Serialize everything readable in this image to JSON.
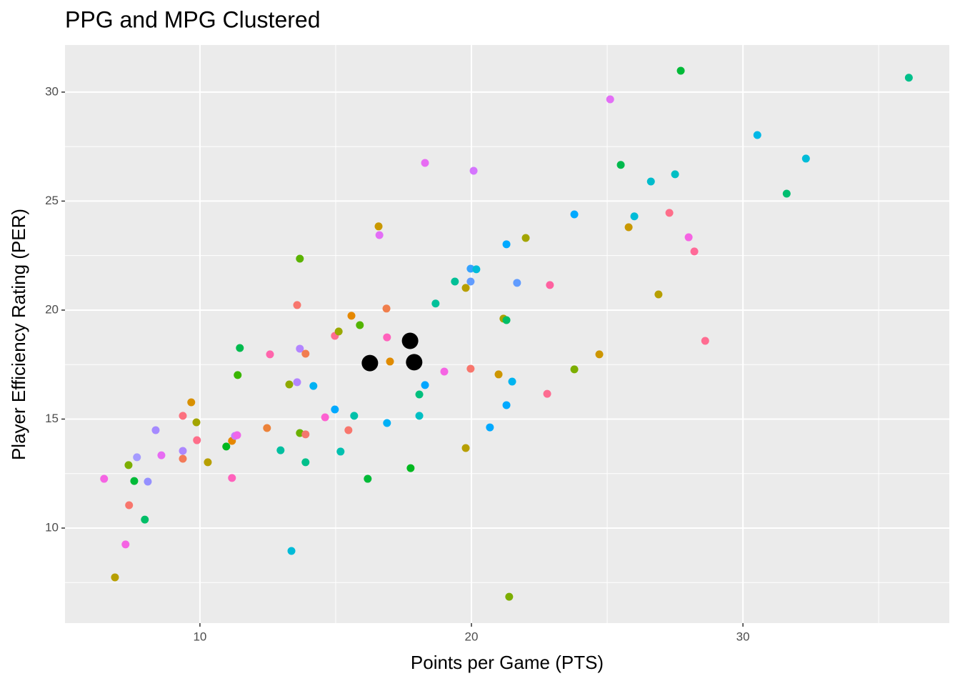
{
  "chart_data": {
    "type": "scatter",
    "title": "PPG and MPG Clustered",
    "x_label": "Points per Game (PTS)",
    "y_label": "Player Efficiency Rating (PER)",
    "xlim": [
      5.03,
      37.6
    ],
    "ylim": [
      5.64,
      32.16
    ],
    "xticks": [
      10,
      20,
      30
    ],
    "yticks": [
      10,
      15,
      20,
      25,
      30
    ],
    "grid": true,
    "background": "#ebebeb",
    "series": [
      {
        "x": [
          6.47,
          7.26,
          6.87,
          7.37,
          7.39,
          7.58,
          7.68,
          7.97,
          8.08,
          8.37,
          8.58,
          9.37,
          9.37,
          9.37,
          9.68,
          9.87,
          9.89,
          10.29,
          10.97,
          11.18,
          11.18,
          11.29,
          11.37,
          11.39,
          11.47,
          12.47,
          12.58,
          12.97,
          13.29,
          13.37,
          13.58,
          13.58,
          13.68,
          13.68,
          13.68,
          13.89,
          13.89,
          13.89,
          14.18,
          14.61,
          14.97,
          14.97,
          15.11,
          15.18,
          15.47,
          15.58,
          15.68,
          15.89,
          16.18,
          16.58,
          16.61,
          16.87,
          16.89,
          16.89,
          17.0,
          17.76,
          18.08,
          18.08,
          18.29,
          18.29,
          18.68,
          19.0,
          19.39,
          19.79,
          19.79,
          19.97,
          19.97,
          19.97,
          20.08,
          20.18,
          20.68,
          21.0,
          21.18,
          21.29,
          21.29,
          21.29,
          21.39,
          21.5,
          21.68,
          22.0,
          22.79,
          22.89,
          23.79,
          23.79,
          24.71,
          25.11,
          25.5,
          25.79,
          26.0,
          26.61,
          26.89,
          27.29,
          27.5,
          27.71,
          28.0,
          28.21,
          28.61,
          30.53,
          31.61,
          32.32,
          36.11
        ],
        "values": [
          12.26,
          9.25,
          7.74,
          12.89,
          11.05,
          12.16,
          13.25,
          10.39,
          12.13,
          14.49,
          13.34,
          15.15,
          13.18,
          13.54,
          15.77,
          14.85,
          14.03,
          13.02,
          13.74,
          12.3,
          14.0,
          14.23,
          14.26,
          17.02,
          18.26,
          14.59,
          17.97,
          13.57,
          16.59,
          8.95,
          20.23,
          16.69,
          18.23,
          22.36,
          14.36,
          18.0,
          14.3,
          13.02,
          16.52,
          15.08,
          18.82,
          15.44,
          19.02,
          13.51,
          14.49,
          19.74,
          15.15,
          19.31,
          12.26,
          23.84,
          23.44,
          20.07,
          18.75,
          14.82,
          17.64,
          12.75,
          16.13,
          15.15,
          16.56,
          26.75,
          20.3,
          17.18,
          21.31,
          21.02,
          13.67,
          21.9,
          21.31,
          17.31,
          26.39,
          21.87,
          14.62,
          17.05,
          19.61,
          19.54,
          23.02,
          15.64,
          6.85,
          16.72,
          21.25,
          23.31,
          16.16,
          21.15,
          17.28,
          24.39,
          17.97,
          29.67,
          26.66,
          23.8,
          24.3,
          25.9,
          20.72,
          24.46,
          26.23,
          30.98,
          23.34,
          22.69,
          18.59,
          28.03,
          25.34,
          26.95,
          30.66
        ],
        "colors": [
          "#f564e3",
          "#f564e3",
          "#b79f00",
          "#7cae00",
          "#f8766d",
          "#00ba38",
          "#a59bff",
          "#00be67",
          "#9590ff",
          "#a58aff",
          "#e76bf3",
          "#fc717f",
          "#f37b59",
          "#ac88ff",
          "#d89000",
          "#a3a500",
          "#fe6e8a",
          "#b79f00",
          "#00b81f",
          "#ff62bc",
          "#e58700",
          "#c77cff",
          "#f066ea",
          "#39b600",
          "#00bb4e",
          "#ec8239",
          "#ff65ac",
          "#00bfa0",
          "#8fa900",
          "#00bbd8",
          "#f8766d",
          "#b385ff",
          "#b385ff",
          "#5bb300",
          "#6bb100",
          "#f17d50",
          "#f3766d",
          "#00c08b",
          "#00b2f3",
          "#fd61d1",
          "#ff6c91",
          "#00a9ff",
          "#9aa800",
          "#00c0af",
          "#f8766d",
          "#e58700",
          "#00c1aa",
          "#53b400",
          "#00ba38",
          "#c99800",
          "#e36ef6",
          "#f07e4c",
          "#ff62bc",
          "#00b0f6",
          "#e08b00",
          "#00b81f",
          "#00bf7d",
          "#00bfc4",
          "#00a5ff",
          "#e76bf3",
          "#00c19a",
          "#f564e3",
          "#00bf96",
          "#b79f00",
          "#b79f00",
          "#35a2ff",
          "#619cff",
          "#f8766d",
          "#d575fe",
          "#00bcd8",
          "#00a9ff",
          "#cd9600",
          "#aba300",
          "#00be67",
          "#00a9ff",
          "#00a9ff",
          "#7cae00",
          "#00b4f0",
          "#619cff",
          "#a3a500",
          "#fd6c91",
          "#fe61a0",
          "#7cae00",
          "#00a9ff",
          "#cd9600",
          "#e36ef6",
          "#00b94d",
          "#c99800",
          "#00bcd8",
          "#00bccc",
          "#b79f00",
          "#fe6e8a",
          "#00bfc4",
          "#00ba38",
          "#f564e3",
          "#ff6a98",
          "#ff6c91",
          "#00b8e7",
          "#00be70",
          "#00bcd8",
          "#00c08b"
        ],
        "marker_size": 5.5
      },
      {
        "x": [
          16.26,
          17.74,
          17.89
        ],
        "values": [
          17.57,
          18.59,
          17.61
        ],
        "color": "#000000",
        "marker_size": 11.5
      }
    ]
  }
}
